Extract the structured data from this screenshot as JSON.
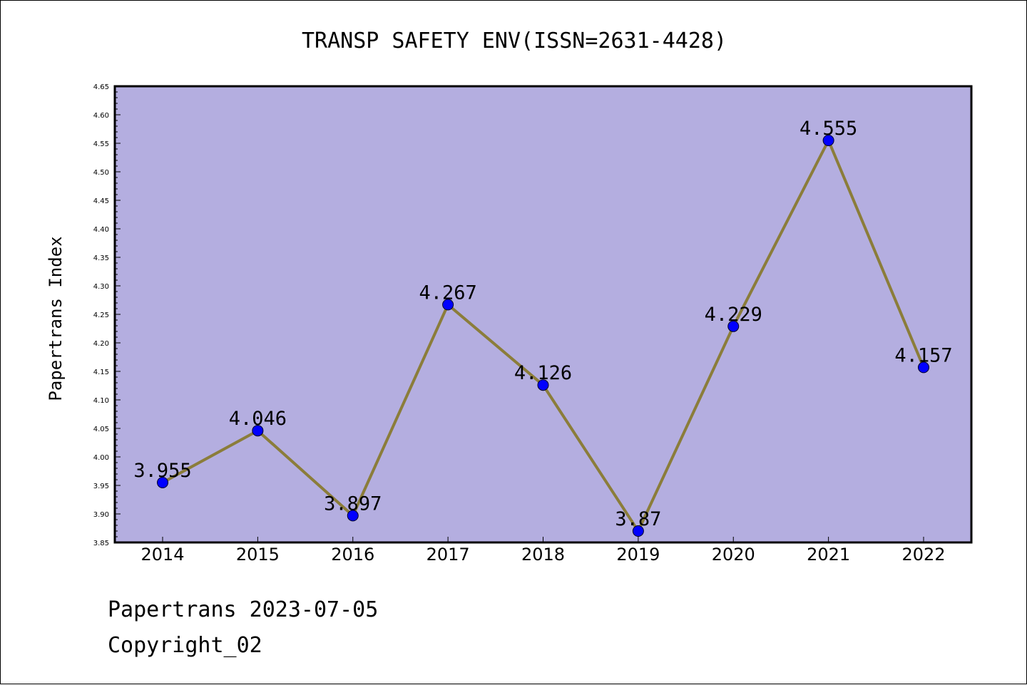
{
  "chart_data": {
    "type": "line",
    "title": "TRANSP SAFETY ENV(ISSN=2631-4428)",
    "xlabel": "",
    "ylabel": "Papertrans Index",
    "categories": [
      "2014",
      "2015",
      "2016",
      "2017",
      "2018",
      "2019",
      "2020",
      "2021",
      "2022"
    ],
    "values": [
      3.955,
      4.046,
      3.897,
      4.267,
      4.126,
      3.87,
      4.229,
      4.555,
      4.157
    ],
    "data_labels": [
      "3.955",
      "4.046",
      "3.897",
      "4.267",
      "4.126",
      "3.87",
      "4.229",
      "4.555",
      "4.157"
    ],
    "ylim": [
      3.85,
      4.65
    ],
    "yticks": [
      "3.85",
      "3.90",
      "3.95",
      "4.00",
      "4.05",
      "4.10",
      "4.15",
      "4.20",
      "4.25",
      "4.30",
      "4.35",
      "4.40",
      "4.45",
      "4.50",
      "4.55",
      "4.60",
      "4.65"
    ],
    "grid": false,
    "colors": {
      "plot_background": "#b4aee0",
      "line": "#8b7d3a",
      "marker": "#0000ff"
    }
  },
  "footer": {
    "line1": "Papertrans 2023-07-05",
    "line2": "Copyright_02"
  }
}
